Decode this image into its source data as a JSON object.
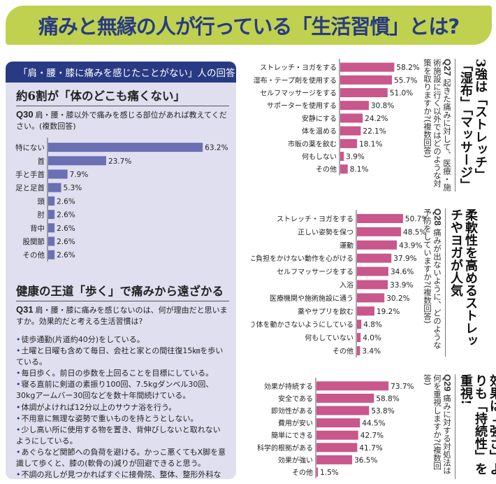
{
  "banner": {
    "title": "痛みと無縁の人が行っている「生活習慣」とは?"
  },
  "colors": {
    "banner_bg": "#bfd14f",
    "navy": "#283a83",
    "panel_bg": "#dfdff0",
    "blue_bar": "#6b6fb3",
    "pink_bar": "#c9578b"
  },
  "left_panel": {
    "header": "「肩・腰・膝に痛みを感じたことがない」人の回答",
    "section1_title": "約6割が「体のどこも痛くない」",
    "q30_label": "Q30",
    "q30_text": "肩・腰・膝以外で痛みを感じる部位があれば教えてください。(複数回答)",
    "section2_title": "健康の王道「歩く」で痛みから遠ざかる",
    "q31_label": "Q31",
    "q31_text": "肩・腰・膝に痛みを感じないのは、何が理由だと思いますか。効果的だと考える生活習慣は?",
    "q31_answers": [
      "徒歩通勤(片道約40分)をしている。",
      "土曜と日曜も含めて毎日、会社と家との間往復15㎞を歩いている。",
      "毎日歩く。前日の歩数を上回ることを目標にしている。",
      "寝る直前に剣道の素振り100回、7.5kgダンベル30回、30kgアームバー30回などを数十年間続けている。",
      "体調がよければ12分以上のサウナ浴を行う。",
      "不用意に無理な姿勢で重いものを持とうとしない。",
      "少し高い所に使用する物を置き、背伸びしないと取れないようにしている。",
      "あぐらなど関節への負荷を避ける。かっこ悪くてもX脚を意識して歩くと、膝の(軟骨の)減りが回避できると思う。",
      "不調の兆しが見つかればすぐに接骨院、整体、整形外科などで診てもらってきた。"
    ]
  },
  "right_panel": {
    "q27": {
      "headline": "3強は「ストレッチ」「湿布」「マッサージ」",
      "label": "Q27",
      "text": "起きた痛みに対して、医療・施術施設に行く以外ではどのような対策を取りますか?(複数回答)"
    },
    "q28": {
      "headline": "柔軟性を高めるストレッチやヨガが人気",
      "label": "Q28",
      "text": "痛みが出ないように、どのような予防をしていますか?(複数回答)"
    },
    "q29": {
      "headline": "効果は「強さ」よりも「持続性」を重視!",
      "label": "Q29",
      "text": "痛みに対する対処法は何を重視しますか?(複数回答)"
    }
  },
  "chart_data": [
    {
      "id": "q30",
      "type": "bar",
      "orientation": "horizontal",
      "title": "Q30 肩・腰・膝以外で痛みを感じる部位があれば教えてください。(複数回答)",
      "categories": [
        "特にない",
        "首",
        "手と手首",
        "足と足首",
        "頭",
        "肘",
        "背中",
        "股関節",
        "その他"
      ],
      "values": [
        63.2,
        23.7,
        7.9,
        5.3,
        2.6,
        2.6,
        2.6,
        2.6,
        2.6
      ],
      "labels": [
        "63.2%",
        "23.7%",
        "7.9%",
        "5.3%",
        "2.6%",
        "2.6%",
        "2.6%",
        "2.6%",
        "2.6%"
      ],
      "unit": "%",
      "color": "#6b6fb3"
    },
    {
      "id": "q27",
      "type": "bar",
      "orientation": "horizontal",
      "title": "Q27 起きた痛みに対して、医療・施術施設に行く以外ではどのような対策を取りますか?(複数回答)",
      "categories": [
        "ストレッチ・ヨガをする",
        "湿布・テープ剤を使用する",
        "セルフマッサージをする",
        "サポーターを使用する",
        "安静にする",
        "体を温める",
        "市販の薬を飲む",
        "何もしない",
        "その他"
      ],
      "values": [
        58.2,
        55.7,
        51.0,
        30.8,
        24.2,
        22.1,
        18.1,
        3.9,
        8.1
      ],
      "labels": [
        "58.2%",
        "55.7%",
        "51.0%",
        "30.8%",
        "24.2%",
        "22.1%",
        "18.1%",
        "3.9%",
        "8.1%"
      ],
      "unit": "%",
      "color": "#c9578b"
    },
    {
      "id": "q28",
      "type": "bar",
      "orientation": "horizontal",
      "title": "Q28 痛みが出ないように、どのような予防をしていますか?(複数回答)",
      "categories": [
        "ストレッチ・ヨガをする",
        "正しい姿勢を保つ",
        "運動",
        "体に負担をかけない動作を心がける",
        "セルフマッサージをする",
        "入浴",
        "医療機関や施術施設に通う",
        "薬やサプリを飲む",
        "あまり体を動かさないようにしている",
        "何もしていない",
        "その他"
      ],
      "values": [
        50.7,
        48.5,
        43.9,
        37.9,
        34.6,
        33.9,
        30.2,
        19.2,
        4.8,
        4.0,
        3.4
      ],
      "labels": [
        "50.7%",
        "48.5%",
        "43.9%",
        "37.9%",
        "34.6%",
        "33.9%",
        "30.2%",
        "19.2%",
        "4.8%",
        "4.0%",
        "3.4%"
      ],
      "unit": "%",
      "color": "#c9578b"
    },
    {
      "id": "q29",
      "type": "bar",
      "orientation": "horizontal",
      "title": "Q29 痛みに対する対処法は何を重視しますか?(複数回答)",
      "categories": [
        "効果が持続する",
        "安全である",
        "即効性がある",
        "費用が安い",
        "簡単にできる",
        "科学的根拠がある",
        "効果が強い",
        "その他"
      ],
      "values": [
        73.7,
        58.8,
        53.8,
        44.5,
        42.7,
        41.7,
        36.5,
        1.5
      ],
      "labels": [
        "73.7%",
        "58.8%",
        "53.8%",
        "44.5%",
        "42.7%",
        "41.7%",
        "36.5%",
        "1.5%"
      ],
      "unit": "%",
      "color": "#c9578b"
    }
  ]
}
